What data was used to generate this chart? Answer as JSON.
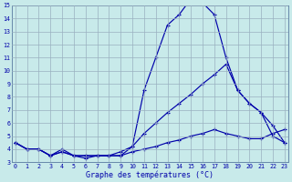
{
  "xlabel": "Graphe des températures (°C)",
  "background_color": "#c8eaea",
  "grid_color": "#9ab0c0",
  "line_color": "#0000aa",
  "hours": [
    0,
    1,
    2,
    3,
    4,
    5,
    6,
    7,
    8,
    9,
    10,
    11,
    12,
    13,
    14,
    15,
    16,
    17,
    18,
    19,
    20,
    21,
    22,
    23
  ],
  "line1": [
    4.5,
    4.0,
    4.0,
    3.5,
    3.8,
    3.5,
    3.3,
    3.5,
    3.5,
    3.5,
    4.2,
    8.5,
    11.0,
    13.5,
    14.3,
    15.5,
    15.2,
    14.3,
    11.0,
    8.5,
    7.5,
    6.8,
    5.8,
    4.5
  ],
  "line2": [
    4.5,
    4.0,
    4.0,
    3.5,
    4.0,
    3.5,
    3.5,
    3.5,
    3.5,
    3.8,
    4.2,
    5.2,
    6.0,
    6.8,
    7.5,
    8.2,
    9.0,
    9.7,
    10.5,
    8.5,
    7.5,
    6.8,
    5.0,
    4.5
  ],
  "line3": [
    4.5,
    4.0,
    4.0,
    3.5,
    3.8,
    3.5,
    3.5,
    3.5,
    3.5,
    3.5,
    3.8,
    4.0,
    4.2,
    4.5,
    4.7,
    5.0,
    5.2,
    5.5,
    5.2,
    5.0,
    4.8,
    4.8,
    5.2,
    5.5
  ],
  "ylim": [
    3,
    15
  ],
  "xlim_min": -0.3,
  "xlim_max": 23.3,
  "yticks": [
    3,
    4,
    5,
    6,
    7,
    8,
    9,
    10,
    11,
    12,
    13,
    14,
    15
  ],
  "xticks": [
    0,
    1,
    2,
    3,
    4,
    5,
    6,
    7,
    8,
    9,
    10,
    11,
    12,
    13,
    14,
    15,
    16,
    17,
    18,
    19,
    20,
    21,
    22,
    23
  ]
}
